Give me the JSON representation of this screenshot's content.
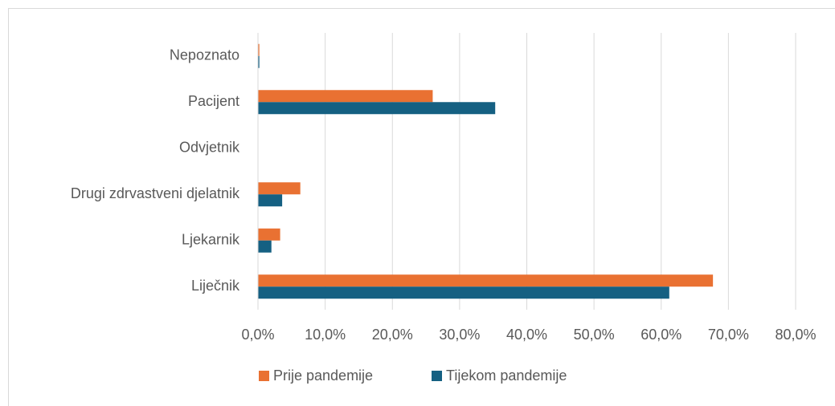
{
  "chart_data": {
    "type": "bar",
    "orientation": "horizontal",
    "categories": [
      "Nepoznato",
      "Pacijent",
      "Odvjetnik",
      "Drugi zdrvastveni djelatnik",
      "Ljekarnik",
      "Liječnik"
    ],
    "series": [
      {
        "name": "Prije pandemije",
        "color": "#e97132",
        "values": [
          0.2,
          26.0,
          0,
          6.3,
          3.3,
          67.7
        ]
      },
      {
        "name": "Tijekom pandemije",
        "color": "#156082",
        "values": [
          0.2,
          35.3,
          0,
          3.6,
          2.0,
          61.2
        ]
      }
    ],
    "xlim": [
      0,
      80
    ],
    "xticks": [
      {
        "value": 0,
        "label": "0,0%"
      },
      {
        "value": 10,
        "label": "10,0%"
      },
      {
        "value": 20,
        "label": "20,0%"
      },
      {
        "value": 30,
        "label": "30,0%"
      },
      {
        "value": 40,
        "label": "40,0%"
      },
      {
        "value": 50,
        "label": "50,0%"
      },
      {
        "value": 60,
        "label": "60,0%"
      },
      {
        "value": 70,
        "label": "70,0%"
      },
      {
        "value": 80,
        "label": "80,0%"
      }
    ],
    "grid": true,
    "legend": "bottom"
  }
}
